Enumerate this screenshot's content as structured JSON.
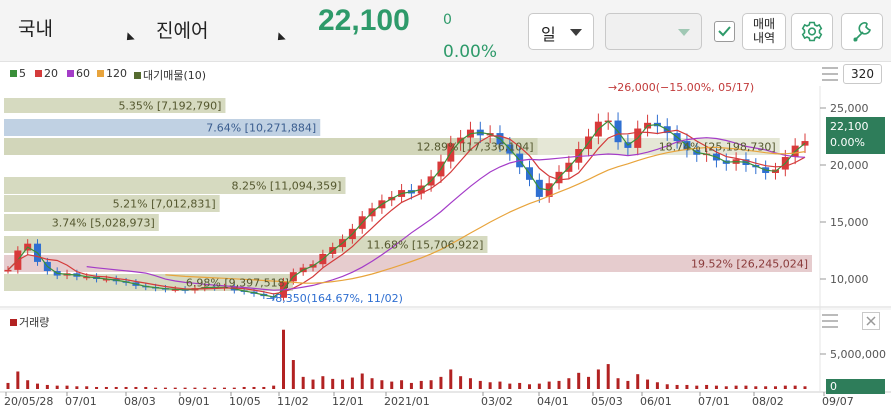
{
  "header": {
    "market": "국내",
    "stock_name": "진에어",
    "price": "22,100",
    "change": "0",
    "change_pct": "0.00%",
    "period": "일",
    "secondary_select": "",
    "trade_history_line1": "매매",
    "trade_history_line2": "내역",
    "colors": {
      "price": "#2e9a6a",
      "accent": "#2e9a6a"
    }
  },
  "legend": [
    {
      "label": "5",
      "color": "#3a8f3a"
    },
    {
      "label": "20",
      "color": "#d43b3b"
    },
    {
      "label": "60",
      "color": "#a43cc8"
    },
    {
      "label": "120",
      "color": "#e8a43c"
    },
    {
      "label": "대기매물(10)",
      "color": "#556b2f"
    }
  ],
  "side": {
    "period_count": "320"
  },
  "volume_panel": {
    "label": "거래량",
    "axis_label": "5,000,000",
    "last_value": "0"
  },
  "chart_data": {
    "type": "candlestick",
    "y_axis_ticks": [
      "25,000",
      "20,000",
      "15,000",
      "10,000"
    ],
    "y_ticks_values": [
      25000,
      20000,
      15000,
      10000
    ],
    "last_price_label": "22,100",
    "last_pct_label": "0.00%",
    "x_tick_labels": [
      "20/05/28",
      "07/01",
      "08/03",
      "09/01",
      "10/05",
      "11/02",
      "12/01",
      "2021/01",
      "03/02",
      "04/01",
      "05/03",
      "06/01",
      "07/01",
      "08/02",
      "09/07"
    ],
    "high_annotation": "26,000(−15.00%, 05/17)",
    "low_annotation": "8,350(164.67%, 11/02)",
    "supply_zones": [
      {
        "label": "5.35% [7,192,790]",
        "pct": 5.35,
        "kind": "olive"
      },
      {
        "label": "7.64% [10,271,884]",
        "pct": 7.64,
        "kind": "blue"
      },
      {
        "label": "12.89% [17,336,104]",
        "pct": 12.89,
        "kind": "olive"
      },
      {
        "label": "18.74% [25,198,730]",
        "pct": 18.74,
        "kind": "olive"
      },
      {
        "label": "8.25% [11,094,359]",
        "pct": 8.25,
        "kind": "olive"
      },
      {
        "label": "5.21% [7,012,831]",
        "pct": 5.21,
        "kind": "olive"
      },
      {
        "label": "3.74% [5,028,973]",
        "pct": 3.74,
        "kind": "olive"
      },
      {
        "label": "11.68% [15,706,922]",
        "pct": 11.68,
        "kind": "olive"
      },
      {
        "label": "19.52% [26,245,024]",
        "pct": 19.52,
        "kind": "pink"
      },
      {
        "label": "6.98% [9,397,518]",
        "pct": 6.98,
        "kind": "olive"
      }
    ],
    "price_series": [
      10800,
      12500,
      13100,
      11500,
      10700,
      10300,
      10500,
      10200,
      10200,
      10000,
      10000,
      9800,
      9700,
      9400,
      9300,
      9200,
      9100,
      9100,
      9000,
      9200,
      9300,
      9250,
      9300,
      9000,
      8900,
      8700,
      8500,
      8350,
      9800,
      10600,
      11000,
      11300,
      12200,
      12800,
      13500,
      14400,
      15500,
      16200,
      16900,
      17200,
      17800,
      17500,
      18200,
      19000,
      20300,
      21900,
      22400,
      23100,
      22600,
      22800,
      21800,
      21000,
      19800,
      18700,
      17200,
      18400,
      19400,
      20200,
      21400,
      22500,
      23800,
      23900,
      22000,
      21500,
      23200,
      23700,
      23400,
      22800,
      22100,
      21300,
      20900,
      21000,
      20400,
      20100,
      20500,
      20000,
      19800,
      19300,
      19600,
      20700,
      21700,
      22100
    ],
    "volume_series": [
      0.9,
      2.6,
      1.3,
      0.8,
      0.6,
      0.5,
      0.5,
      0.4,
      0.4,
      0.3,
      0.3,
      0.3,
      0.3,
      0.3,
      0.3,
      0.2,
      0.2,
      0.2,
      0.2,
      0.2,
      0.2,
      0.2,
      0.2,
      0.2,
      0.3,
      0.3,
      0.3,
      0.5,
      8.8,
      4.3,
      1.8,
      1.4,
      1.9,
      1.5,
      1.4,
      1.7,
      2.3,
      1.6,
      1.3,
      1.1,
      1.3,
      0.9,
      1.2,
      1.3,
      1.8,
      2.9,
      1.9,
      1.6,
      1.2,
      1.0,
      1.1,
      0.8,
      0.9,
      0.7,
      0.8,
      1.1,
      1.2,
      1.6,
      2.4,
      1.8,
      2.9,
      3.7,
      1.6,
      1.2,
      2.2,
      1.4,
      1.0,
      0.7,
      0.6,
      0.6,
      0.5,
      0.6,
      0.5,
      0.4,
      0.5,
      0.5,
      0.4,
      0.4,
      0.4,
      0.5,
      0.5,
      0.4
    ],
    "volume_unit": "millions",
    "volume_axis_value": 5000000
  }
}
